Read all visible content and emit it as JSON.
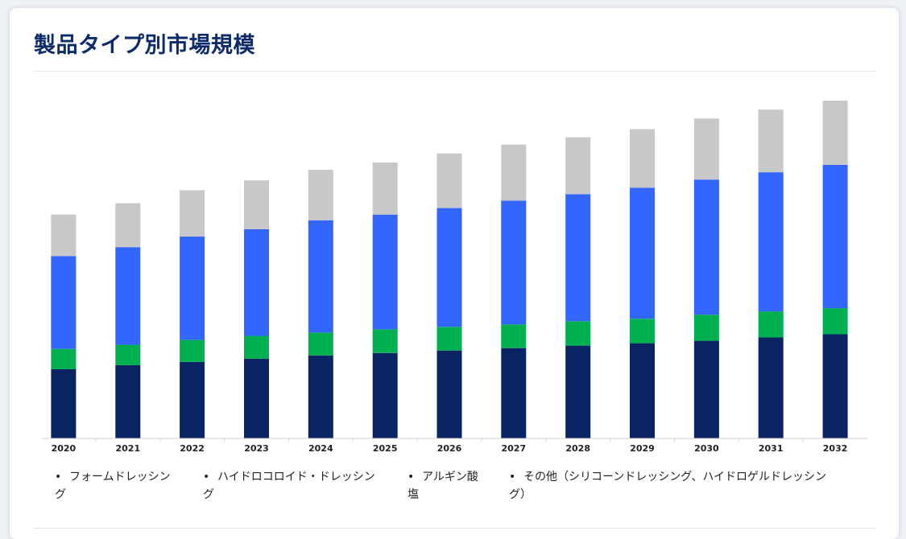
{
  "page": {
    "title": "製品タイプ別市場規模"
  },
  "chart_data": {
    "type": "bar",
    "stacked": true,
    "title": "製品タイプ別市場規模",
    "xlabel": "",
    "ylabel": "",
    "categories": [
      "2020",
      "2021",
      "2022",
      "2023",
      "2024",
      "2025",
      "2026",
      "2027",
      "2028",
      "2029",
      "2030",
      "2031",
      "2032"
    ],
    "ylim": [
      0,
      420
    ],
    "series": [
      {
        "name": "フォームドレッシング",
        "color": "#0a2463",
        "values": [
          85,
          90,
          94,
          98,
          102,
          105,
          108,
          111,
          114,
          117,
          120,
          124,
          128
        ]
      },
      {
        "name": "ハイドロコロイド・ドレッシング",
        "color": "#00b050",
        "values": [
          25,
          25,
          27,
          28,
          28,
          29,
          29,
          29,
          30,
          30,
          32,
          32,
          32
        ]
      },
      {
        "name": "アルギン酸塩",
        "color": "#3366ff",
        "values": [
          114,
          120,
          127,
          131,
          138,
          141,
          146,
          152,
          156,
          161,
          166,
          171,
          176
        ]
      },
      {
        "name": "その他（シリコーンドレッシング、ハイドロゲルドレッシング）",
        "color": "#c8c8c8",
        "values": [
          51,
          54,
          57,
          60,
          62,
          64,
          67,
          69,
          70,
          72,
          75,
          77,
          79
        ]
      }
    ],
    "legend": {
      "position": "bottom",
      "items": [
        {
          "label_line1": "フォームドレッシン",
          "label_line2": "グ"
        },
        {
          "label_line1": "ハイドロコロイド・ドレッシン",
          "label_line2": "グ"
        },
        {
          "label_line1": "アルギン酸",
          "label_line2": "塩"
        },
        {
          "label_line1": "その他（シリコーンドレッシング、ハイドロゲルドレッシン",
          "label_line2": "グ）"
        }
      ]
    }
  }
}
